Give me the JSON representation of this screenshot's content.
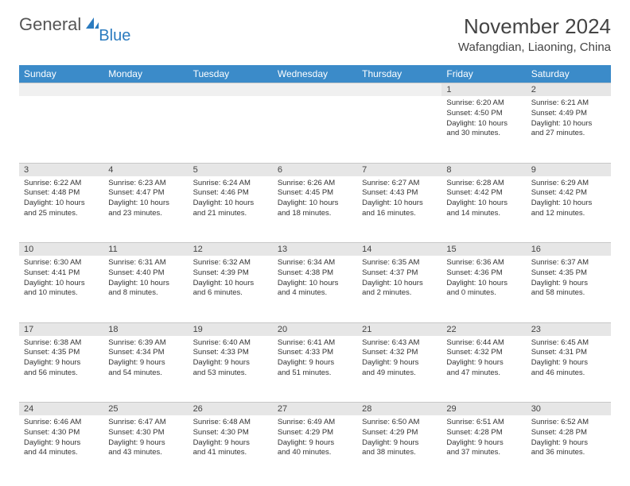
{
  "brand": {
    "part1": "General",
    "part2": "Blue"
  },
  "title": "November 2024",
  "location": "Wafangdian, Liaoning, China",
  "colors": {
    "header_bg": "#3b8bc9",
    "header_text": "#ffffff",
    "daynum_bg": "#e6e6e6",
    "border": "#c8c8c8",
    "brand_blue": "#2b7bbf"
  },
  "weekdays": [
    "Sunday",
    "Monday",
    "Tuesday",
    "Wednesday",
    "Thursday",
    "Friday",
    "Saturday"
  ],
  "weeks": [
    [
      null,
      null,
      null,
      null,
      null,
      {
        "n": "1",
        "sr": "Sunrise: 6:20 AM",
        "ss": "Sunset: 4:50 PM",
        "dl1": "Daylight: 10 hours",
        "dl2": "and 30 minutes."
      },
      {
        "n": "2",
        "sr": "Sunrise: 6:21 AM",
        "ss": "Sunset: 4:49 PM",
        "dl1": "Daylight: 10 hours",
        "dl2": "and 27 minutes."
      }
    ],
    [
      {
        "n": "3",
        "sr": "Sunrise: 6:22 AM",
        "ss": "Sunset: 4:48 PM",
        "dl1": "Daylight: 10 hours",
        "dl2": "and 25 minutes."
      },
      {
        "n": "4",
        "sr": "Sunrise: 6:23 AM",
        "ss": "Sunset: 4:47 PM",
        "dl1": "Daylight: 10 hours",
        "dl2": "and 23 minutes."
      },
      {
        "n": "5",
        "sr": "Sunrise: 6:24 AM",
        "ss": "Sunset: 4:46 PM",
        "dl1": "Daylight: 10 hours",
        "dl2": "and 21 minutes."
      },
      {
        "n": "6",
        "sr": "Sunrise: 6:26 AM",
        "ss": "Sunset: 4:45 PM",
        "dl1": "Daylight: 10 hours",
        "dl2": "and 18 minutes."
      },
      {
        "n": "7",
        "sr": "Sunrise: 6:27 AM",
        "ss": "Sunset: 4:43 PM",
        "dl1": "Daylight: 10 hours",
        "dl2": "and 16 minutes."
      },
      {
        "n": "8",
        "sr": "Sunrise: 6:28 AM",
        "ss": "Sunset: 4:42 PM",
        "dl1": "Daylight: 10 hours",
        "dl2": "and 14 minutes."
      },
      {
        "n": "9",
        "sr": "Sunrise: 6:29 AM",
        "ss": "Sunset: 4:42 PM",
        "dl1": "Daylight: 10 hours",
        "dl2": "and 12 minutes."
      }
    ],
    [
      {
        "n": "10",
        "sr": "Sunrise: 6:30 AM",
        "ss": "Sunset: 4:41 PM",
        "dl1": "Daylight: 10 hours",
        "dl2": "and 10 minutes."
      },
      {
        "n": "11",
        "sr": "Sunrise: 6:31 AM",
        "ss": "Sunset: 4:40 PM",
        "dl1": "Daylight: 10 hours",
        "dl2": "and 8 minutes."
      },
      {
        "n": "12",
        "sr": "Sunrise: 6:32 AM",
        "ss": "Sunset: 4:39 PM",
        "dl1": "Daylight: 10 hours",
        "dl2": "and 6 minutes."
      },
      {
        "n": "13",
        "sr": "Sunrise: 6:34 AM",
        "ss": "Sunset: 4:38 PM",
        "dl1": "Daylight: 10 hours",
        "dl2": "and 4 minutes."
      },
      {
        "n": "14",
        "sr": "Sunrise: 6:35 AM",
        "ss": "Sunset: 4:37 PM",
        "dl1": "Daylight: 10 hours",
        "dl2": "and 2 minutes."
      },
      {
        "n": "15",
        "sr": "Sunrise: 6:36 AM",
        "ss": "Sunset: 4:36 PM",
        "dl1": "Daylight: 10 hours",
        "dl2": "and 0 minutes."
      },
      {
        "n": "16",
        "sr": "Sunrise: 6:37 AM",
        "ss": "Sunset: 4:35 PM",
        "dl1": "Daylight: 9 hours",
        "dl2": "and 58 minutes."
      }
    ],
    [
      {
        "n": "17",
        "sr": "Sunrise: 6:38 AM",
        "ss": "Sunset: 4:35 PM",
        "dl1": "Daylight: 9 hours",
        "dl2": "and 56 minutes."
      },
      {
        "n": "18",
        "sr": "Sunrise: 6:39 AM",
        "ss": "Sunset: 4:34 PM",
        "dl1": "Daylight: 9 hours",
        "dl2": "and 54 minutes."
      },
      {
        "n": "19",
        "sr": "Sunrise: 6:40 AM",
        "ss": "Sunset: 4:33 PM",
        "dl1": "Daylight: 9 hours",
        "dl2": "and 53 minutes."
      },
      {
        "n": "20",
        "sr": "Sunrise: 6:41 AM",
        "ss": "Sunset: 4:33 PM",
        "dl1": "Daylight: 9 hours",
        "dl2": "and 51 minutes."
      },
      {
        "n": "21",
        "sr": "Sunrise: 6:43 AM",
        "ss": "Sunset: 4:32 PM",
        "dl1": "Daylight: 9 hours",
        "dl2": "and 49 minutes."
      },
      {
        "n": "22",
        "sr": "Sunrise: 6:44 AM",
        "ss": "Sunset: 4:32 PM",
        "dl1": "Daylight: 9 hours",
        "dl2": "and 47 minutes."
      },
      {
        "n": "23",
        "sr": "Sunrise: 6:45 AM",
        "ss": "Sunset: 4:31 PM",
        "dl1": "Daylight: 9 hours",
        "dl2": "and 46 minutes."
      }
    ],
    [
      {
        "n": "24",
        "sr": "Sunrise: 6:46 AM",
        "ss": "Sunset: 4:30 PM",
        "dl1": "Daylight: 9 hours",
        "dl2": "and 44 minutes."
      },
      {
        "n": "25",
        "sr": "Sunrise: 6:47 AM",
        "ss": "Sunset: 4:30 PM",
        "dl1": "Daylight: 9 hours",
        "dl2": "and 43 minutes."
      },
      {
        "n": "26",
        "sr": "Sunrise: 6:48 AM",
        "ss": "Sunset: 4:30 PM",
        "dl1": "Daylight: 9 hours",
        "dl2": "and 41 minutes."
      },
      {
        "n": "27",
        "sr": "Sunrise: 6:49 AM",
        "ss": "Sunset: 4:29 PM",
        "dl1": "Daylight: 9 hours",
        "dl2": "and 40 minutes."
      },
      {
        "n": "28",
        "sr": "Sunrise: 6:50 AM",
        "ss": "Sunset: 4:29 PM",
        "dl1": "Daylight: 9 hours",
        "dl2": "and 38 minutes."
      },
      {
        "n": "29",
        "sr": "Sunrise: 6:51 AM",
        "ss": "Sunset: 4:28 PM",
        "dl1": "Daylight: 9 hours",
        "dl2": "and 37 minutes."
      },
      {
        "n": "30",
        "sr": "Sunrise: 6:52 AM",
        "ss": "Sunset: 4:28 PM",
        "dl1": "Daylight: 9 hours",
        "dl2": "and 36 minutes."
      }
    ]
  ]
}
